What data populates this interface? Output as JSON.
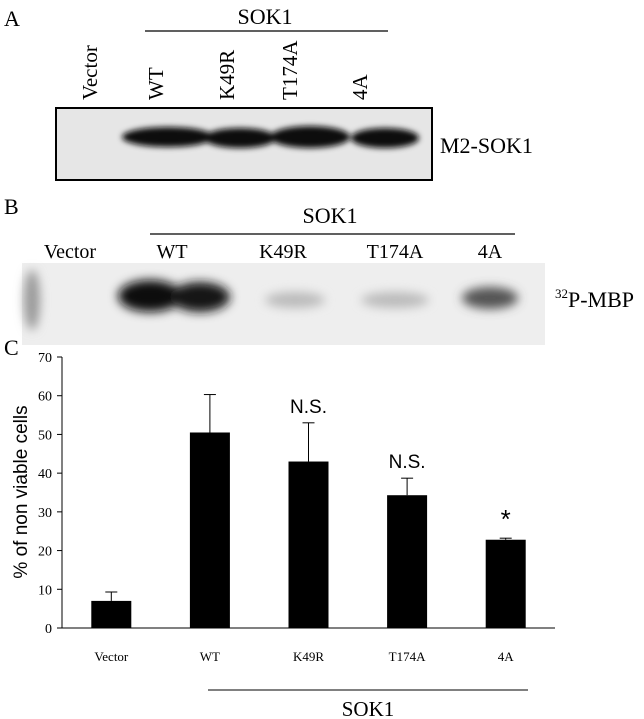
{
  "panels": {
    "A": {
      "label": "A",
      "group": "SOK1",
      "lanes": [
        "Vector",
        "WT",
        "K49R",
        "T174A",
        "4A"
      ],
      "blot_label": "M2-SOK1"
    },
    "B": {
      "label": "B",
      "group": "SOK1",
      "lanes": [
        "Vector",
        "WT",
        "K49R",
        "T174A",
        "4A"
      ],
      "blot_label_sup": "32",
      "blot_label": "P-MBP"
    },
    "C": {
      "label": "C"
    }
  },
  "chart_data": {
    "type": "bar",
    "y_label": "% of non viable cells",
    "categories": [
      "Vector",
      "WT",
      "K49R",
      "T174A",
      "4A"
    ],
    "values": [
      7,
      50.5,
      43,
      34.3,
      22.8
    ],
    "errors": [
      2.3,
      9.8,
      10,
      4.4,
      0.4
    ],
    "value_annotations": [
      null,
      null,
      "N.S.",
      "N.S.",
      "*"
    ],
    "group_label": "SOK1",
    "color": "#000000",
    "ylim": [
      0,
      70
    ],
    "yticks": [
      0,
      10,
      20,
      30,
      40,
      50,
      60,
      70
    ]
  }
}
